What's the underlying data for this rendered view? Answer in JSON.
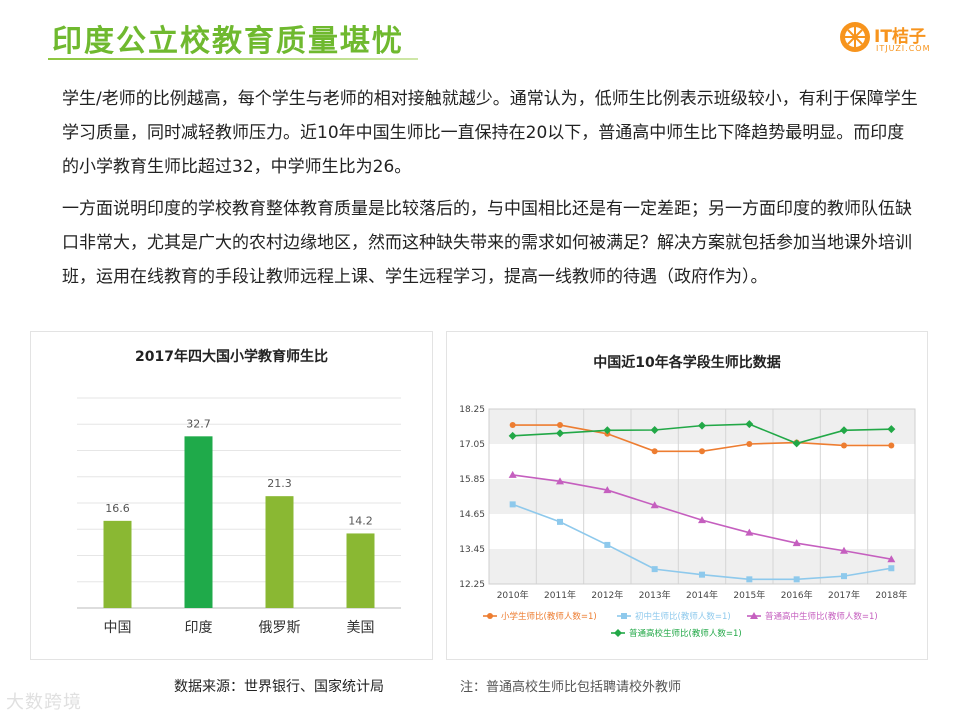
{
  "header": {
    "title": "印度公立校教育质量堪忧",
    "logo_text": "IT桔子",
    "logo_sub": "ITJUZI.COM"
  },
  "body": {
    "paragraph_1": "学生/老师的比例越高，每个学生与老师的相对接触就越少。通常认为，低师生比例表示班级较小，有利于保障学生学习质量，同时减轻教师压力。近10年中国生师比一直保持在20以下，普通高中师生比下降趋势最明显。而印度的小学教育生师比超过32，中学师生比为26。",
    "paragraph_2": "一方面说明印度的学校教育整体教育质量是比较落后的，与中国相比还是有一定差距；另一方面印度的教师队伍缺口非常大，尤其是广大的农村边缘地区，然而这种缺失带来的需求如何被满足？解决方案就包括参加当地课外培训班，运用在线教育的手段让教师远程上课、学生远程学习，提高一线教师的待遇（政府作为）。"
  },
  "footer": {
    "source": "数据来源：世界银行、国家统计局",
    "note": "注：普通高校生师比包括聘请校外教师",
    "watermark": "大数跨境"
  },
  "chart_data": [
    {
      "type": "bar",
      "title": "2017年四大国小学教育师生比",
      "categories": [
        "中国",
        "印度",
        "俄罗斯",
        "美国"
      ],
      "values": [
        16.6,
        32.7,
        21.3,
        14.2
      ],
      "value_labels": [
        "16.6",
        "32.7",
        "21.3",
        "14.2"
      ],
      "colors": [
        "#8ab833",
        "#1faa4a",
        "#8ab833",
        "#8ab833"
      ],
      "ylim": [
        0,
        40
      ],
      "grid": true
    },
    {
      "type": "line",
      "title": "中国近10年各学段生师比数据",
      "x": [
        "2010年",
        "2011年",
        "2012年",
        "2013年",
        "2014年",
        "2015年",
        "2016年",
        "2017年",
        "2018年"
      ],
      "yticks": [
        "18.25",
        "17.05",
        "15.85",
        "14.65",
        "13.45",
        "12.25"
      ],
      "ylim": [
        12.25,
        18.25
      ],
      "grid": true,
      "legend_position": "bottom",
      "series": [
        {
          "name": "小学生师比(教师人数=1)",
          "color": "#ed7d31",
          "marker": "circle",
          "values": [
            17.7,
            17.7,
            17.4,
            16.8,
            16.8,
            17.05,
            17.1,
            17.0,
            17.0
          ]
        },
        {
          "name": "初中生师比(教师人数=1)",
          "color": "#8ec9ec",
          "marker": "square",
          "values": [
            14.98,
            14.38,
            13.59,
            12.76,
            12.57,
            12.41,
            12.41,
            12.52,
            12.79
          ]
        },
        {
          "name": "普通高中生师比(教师人数=1)",
          "color": "#c55fbf",
          "marker": "triangle",
          "values": [
            15.99,
            15.77,
            15.47,
            14.95,
            14.44,
            14.01,
            13.65,
            13.39,
            13.1
          ]
        },
        {
          "name": "普通高校生师比(教师人数=1)",
          "color": "#22a847",
          "marker": "diamond",
          "values": [
            17.33,
            17.42,
            17.52,
            17.53,
            17.68,
            17.73,
            17.07,
            17.52,
            17.56
          ]
        }
      ]
    }
  ]
}
